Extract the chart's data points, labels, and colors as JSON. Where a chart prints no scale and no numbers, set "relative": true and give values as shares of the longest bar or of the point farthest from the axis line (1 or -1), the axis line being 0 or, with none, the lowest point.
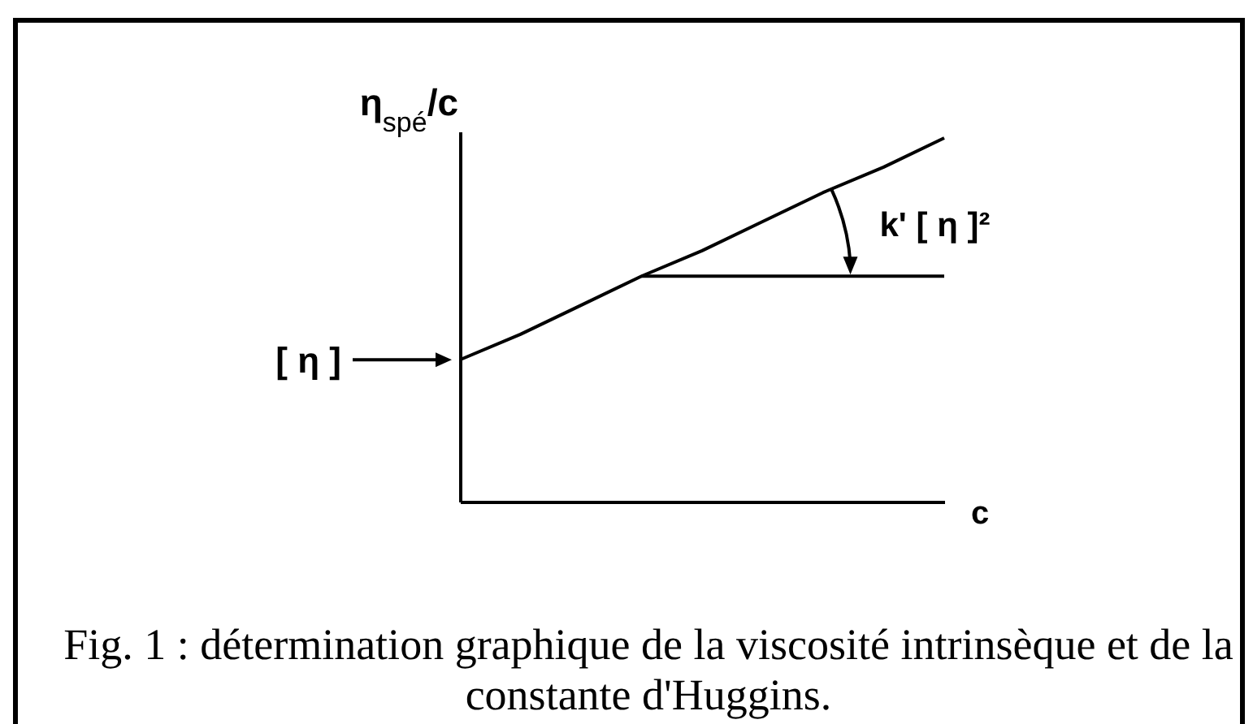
{
  "chart_data": {
    "type": "line",
    "relative": true,
    "categories": [
      null,
      null,
      null,
      null,
      null,
      null,
      null,
      null,
      null
    ],
    "series": [
      {
        "color": "#000000",
        "values": [
          0.39,
          0.46,
          0.54,
          0.62,
          0.69,
          0.77,
          0.85,
          0.92,
          1
        ]
      },
      {
        "color": "#000000",
        "values": [
          null,
          null,
          null,
          0.62,
          0.62,
          0.62,
          0.62,
          0.62,
          0.62
        ]
      }
    ],
    "xlabel": "c",
    "ylabel": "η$_{spé}$/c",
    "annotations": [
      "[ η ]",
      "k' [ η ]²",
      "Fig. 1 : détermination graphique de la viscosité intrinsèque et de la constante d'Huggins."
    ]
  }
}
